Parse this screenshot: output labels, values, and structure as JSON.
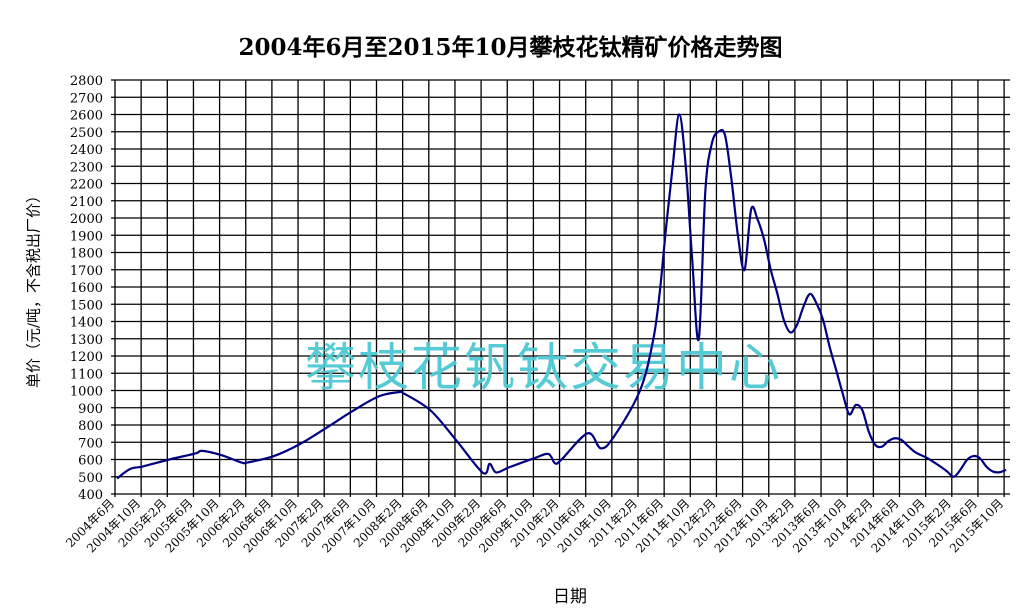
{
  "chart_data": {
    "type": "line",
    "title": "2004年6月至2015年10月攀枝花钛精矿价格走势图",
    "xlabel": "日期",
    "ylabel": "单价（元/吨，不含税出厂价）",
    "watermark": "攀枝花钒钛交易中心",
    "ylim": [
      400,
      2800
    ],
    "ytick_step": 100,
    "grid": true,
    "line_color": "#000080",
    "watermark_color": "#4ec9d3",
    "x_tick_labels": [
      "2004年6月",
      "2004年10月",
      "2005年2月",
      "2005年6月",
      "2005年10月",
      "2006年2月",
      "2006年6月",
      "2006年10月",
      "2007年2月",
      "2007年6月",
      "2007年10月",
      "2008年2月",
      "2008年6月",
      "2008年10月",
      "2009年2月",
      "2009年6月",
      "2009年10月",
      "2010年2月",
      "2010年6月",
      "2010年10月",
      "2011年2月",
      "2011年6月",
      "2011年10月",
      "2012年2月",
      "2012年6月",
      "2012年10月",
      "2013年2月",
      "2013年6月",
      "2013年10月",
      "2014年2月",
      "2014年6月",
      "2014年10月",
      "2015年2月",
      "2015年6月",
      "2015年10月"
    ],
    "series": [
      {
        "points": [
          [
            "2004-06",
            490
          ],
          [
            "2004-08",
            545
          ],
          [
            "2004-10",
            560
          ],
          [
            "2005-02",
            600
          ],
          [
            "2005-06",
            635
          ],
          [
            "2005-07",
            650
          ],
          [
            "2005-10",
            625
          ],
          [
            "2006-01",
            583
          ],
          [
            "2006-02",
            583
          ],
          [
            "2006-06",
            620
          ],
          [
            "2006-10",
            690
          ],
          [
            "2007-02",
            783
          ],
          [
            "2007-06",
            880
          ],
          [
            "2007-10",
            965
          ],
          [
            "2008-01",
            990
          ],
          [
            "2008-02",
            980
          ],
          [
            "2008-06",
            883
          ],
          [
            "2008-10",
            706
          ],
          [
            "2009-02",
            522
          ],
          [
            "2009-03",
            575
          ],
          [
            "2009-04",
            525
          ],
          [
            "2009-06",
            555
          ],
          [
            "2009-10",
            610
          ],
          [
            "2009-12",
            632
          ],
          [
            "2010-01",
            578
          ],
          [
            "2010-02",
            600
          ],
          [
            "2010-06",
            752
          ],
          [
            "2010-08",
            665
          ],
          [
            "2010-10",
            732
          ],
          [
            "2011-02",
            1000
          ],
          [
            "2011-04",
            1290
          ],
          [
            "2011-05",
            1563
          ],
          [
            "2011-06",
            1950
          ],
          [
            "2011-07",
            2300
          ],
          [
            "2011-08",
            2600
          ],
          [
            "2011-09",
            2300
          ],
          [
            "2011-10",
            1750
          ],
          [
            "2011-11",
            1300
          ],
          [
            "2011-12",
            2160
          ],
          [
            "2012-01",
            2433
          ],
          [
            "2012-02",
            2500
          ],
          [
            "2012-03",
            2480
          ],
          [
            "2012-04",
            2220
          ],
          [
            "2012-05",
            1892
          ],
          [
            "2012-06",
            1700
          ],
          [
            "2012-07",
            2050
          ],
          [
            "2012-08",
            1990
          ],
          [
            "2012-09",
            1872
          ],
          [
            "2012-10",
            1700
          ],
          [
            "2012-11",
            1563
          ],
          [
            "2012-12",
            1409
          ],
          [
            "2013-01",
            1337
          ],
          [
            "2013-02",
            1380
          ],
          [
            "2013-03",
            1486
          ],
          [
            "2013-04",
            1560
          ],
          [
            "2013-05",
            1505
          ],
          [
            "2013-06",
            1410
          ],
          [
            "2013-07",
            1254
          ],
          [
            "2013-08",
            1119
          ],
          [
            "2013-09",
            984
          ],
          [
            "2013-10",
            862
          ],
          [
            "2013-11",
            916
          ],
          [
            "2013-12",
            887
          ],
          [
            "2014-01",
            761
          ],
          [
            "2014-02",
            684
          ],
          [
            "2014-03",
            674
          ],
          [
            "2014-04",
            707
          ],
          [
            "2014-05",
            723
          ],
          [
            "2014-06",
            713
          ],
          [
            "2014-07",
            678
          ],
          [
            "2014-08",
            645
          ],
          [
            "2014-09",
            625
          ],
          [
            "2014-10",
            607
          ],
          [
            "2014-12",
            558
          ],
          [
            "2015-01",
            530
          ],
          [
            "2015-02",
            500
          ],
          [
            "2015-03",
            540
          ],
          [
            "2015-04",
            597
          ],
          [
            "2015-05",
            620
          ],
          [
            "2015-06",
            607
          ],
          [
            "2015-07",
            558
          ],
          [
            "2015-08",
            530
          ],
          [
            "2015-09",
            526
          ],
          [
            "2015-10",
            540
          ]
        ]
      }
    ]
  }
}
